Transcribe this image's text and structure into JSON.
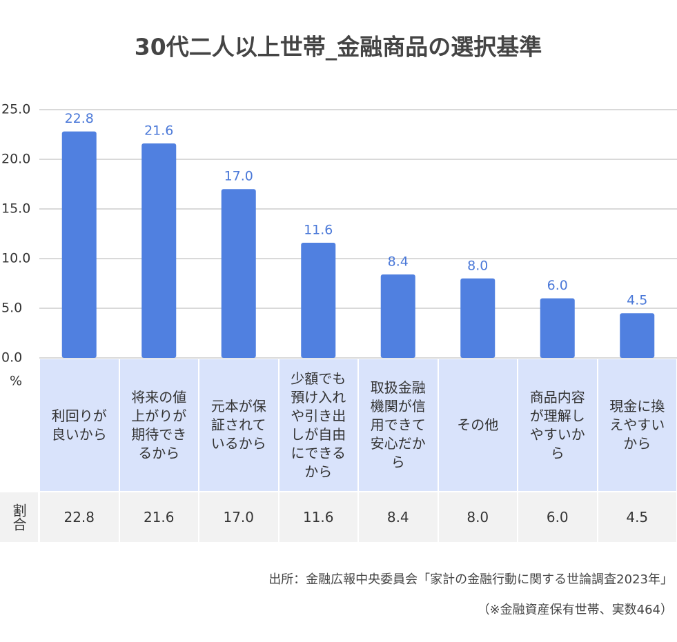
{
  "chart_data": {
    "type": "bar",
    "title": "30代二人以上世帯_金融商品の選択基準",
    "y_unit": "%",
    "categories": [
      "利回りが良いから",
      "将来の値上がりが期待できるから",
      "元本が保証されているから",
      "少額でも預け入れや引き出しが自由にできるから",
      "取扱金融機関が信用できて安心だから",
      "その他",
      "商品内容が理解しやすいから",
      "現金に換えやすいから"
    ],
    "values": [
      22.8,
      21.6,
      17.0,
      11.6,
      8.4,
      8.0,
      6.0,
      4.5
    ],
    "value_labels": [
      "22.8",
      "21.6",
      "17.0",
      "11.6",
      "8.4",
      "8.0",
      "6.0",
      "4.5"
    ],
    "color": "#5080e0",
    "ylim": [
      0,
      25
    ],
    "yticks": [
      {
        "value": 0,
        "label": "0.0"
      },
      {
        "value": 5,
        "label": "5.0"
      },
      {
        "value": 10,
        "label": "10.0"
      },
      {
        "value": 15,
        "label": "15.0"
      },
      {
        "value": 20,
        "label": "20.0"
      },
      {
        "value": 25,
        "label": "25.0"
      }
    ],
    "grid": true,
    "table_row_header": "割合",
    "source": [
      "出所：金融広報中央委員会「家計の金融行動に関する世論調査2023年」",
      "（※金融資産保有世帯、実数464）"
    ]
  }
}
